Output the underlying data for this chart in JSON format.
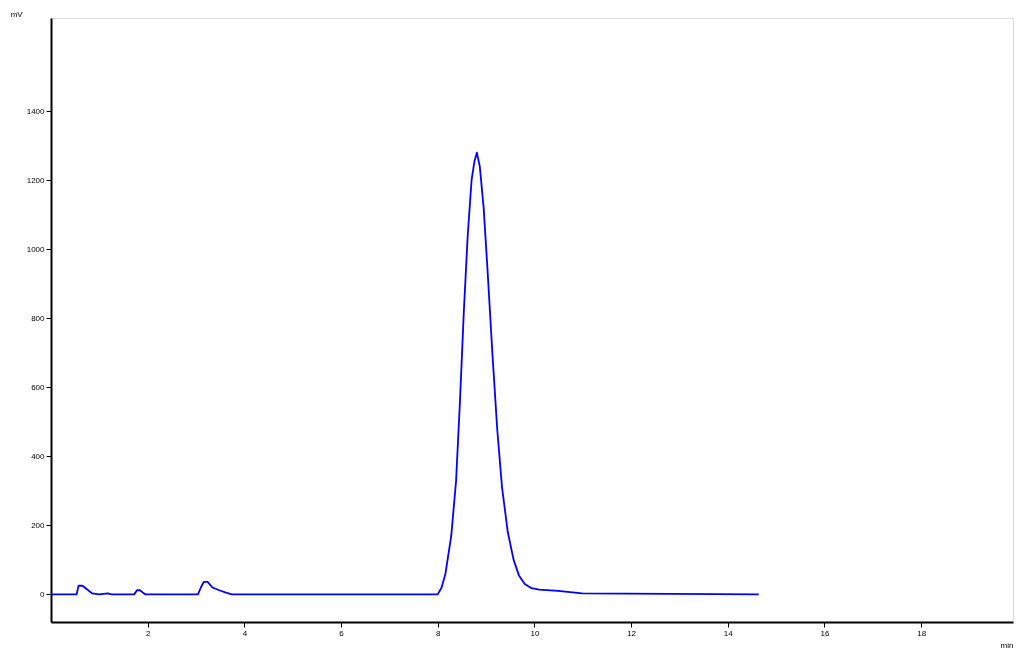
{
  "chart_data": {
    "type": "line",
    "xlabel": "min",
    "ylabel": "mV",
    "x": [
      0,
      0.53,
      0.57,
      0.65,
      0.77,
      0.85,
      1.0,
      1.17,
      1.25,
      1.72,
      1.78,
      1.84,
      1.92,
      1.96,
      3.04,
      3.1,
      3.16,
      3.24,
      3.34,
      3.48,
      3.62,
      3.74,
      8.0,
      8.08,
      8.16,
      8.28,
      8.38,
      8.46,
      8.54,
      8.62,
      8.7,
      8.76,
      8.81,
      8.87,
      8.95,
      9.03,
      9.13,
      9.23,
      9.33,
      9.45,
      9.57,
      9.68,
      9.8,
      9.94,
      10.1,
      10.49,
      10.99,
      14.64
    ],
    "series": [
      {
        "color": "#0000ff",
        "values": [
          0,
          0,
          25,
          25,
          12,
          3,
          0,
          3,
          0,
          0,
          12,
          12,
          3,
          0,
          0,
          20,
          36,
          36,
          20,
          12,
          5,
          0,
          0,
          20,
          60,
          170,
          330,
          560,
          820,
          1040,
          1200,
          1255,
          1280,
          1240,
          1120,
          940,
          700,
          480,
          310,
          180,
          100,
          55,
          30,
          18,
          14,
          10,
          3,
          0
        ]
      }
    ],
    "xlim": [
      0,
      19.9
    ],
    "ylim": [
      -80,
      1670
    ],
    "xticks": [
      2,
      4,
      6,
      8,
      10,
      12,
      14,
      16,
      18
    ],
    "yticks": [
      0,
      200,
      400,
      600,
      800,
      1000,
      1200,
      1400
    ],
    "grid": false,
    "marker": "none",
    "line_style": "solid"
  }
}
